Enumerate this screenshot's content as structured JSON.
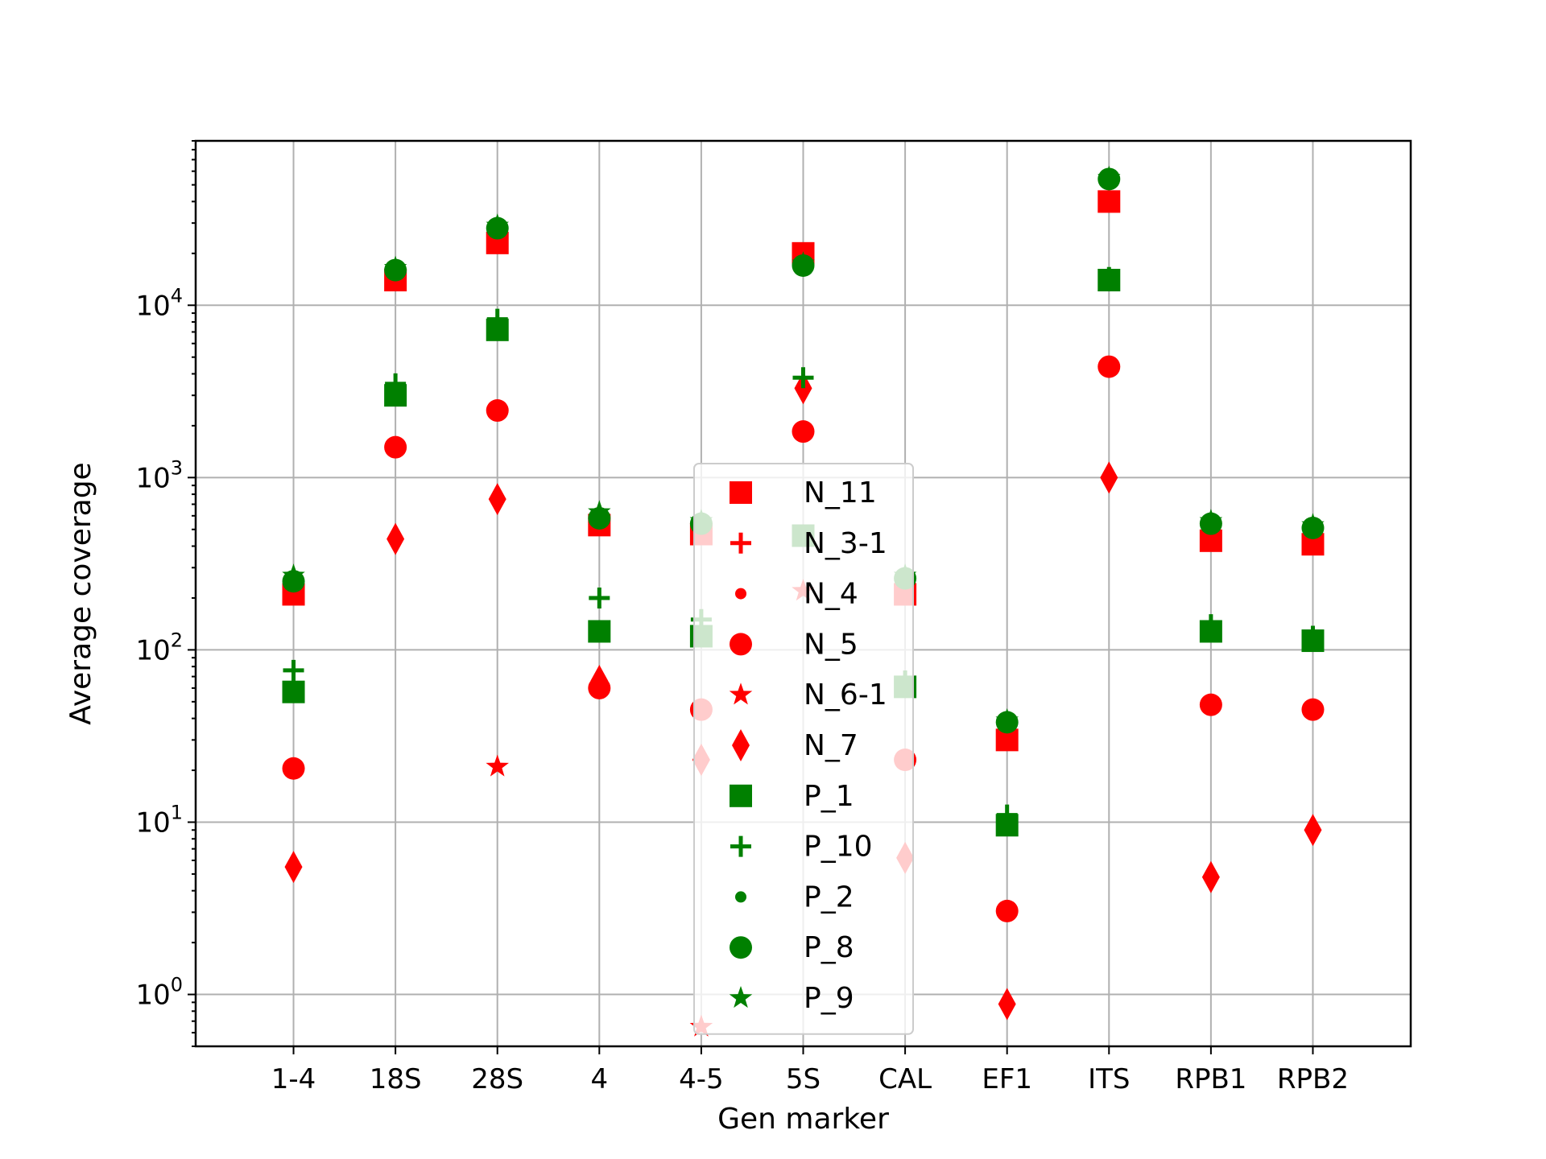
{
  "chart_data": {
    "type": "scatter",
    "title": "",
    "xlabel": "Gen marker",
    "ylabel": "Average coverage",
    "yscale": "log",
    "ylim": [
      0.5,
      90000
    ],
    "grid": true,
    "legend_position": "center",
    "categories": [
      "1-4",
      "18S",
      "28S",
      "4",
      "4-5",
      "5S",
      "CAL",
      "EF1",
      "ITS",
      "RPB1",
      "RPB2"
    ],
    "y_ticks": [
      {
        "value": 1,
        "base": "10",
        "exp": "0"
      },
      {
        "value": 10,
        "base": "10",
        "exp": "1"
      },
      {
        "value": 100,
        "base": "10",
        "exp": "2"
      },
      {
        "value": 1000,
        "base": "10",
        "exp": "3"
      },
      {
        "value": 10000,
        "base": "10",
        "exp": "4"
      }
    ],
    "colors": {
      "N": "#ff0000",
      "P": "#008000"
    },
    "series": [
      {
        "name": "N_11",
        "color": "#ff0000",
        "marker": "square",
        "points": [
          [
            "1-4",
            210
          ],
          [
            "18S",
            14000
          ],
          [
            "28S",
            23000
          ],
          [
            "4",
            530
          ],
          [
            "4-5",
            470
          ],
          [
            "5S",
            20000
          ],
          [
            "CAL",
            210
          ],
          [
            "EF1",
            30
          ],
          [
            "ITS",
            40000
          ],
          [
            "RPB1",
            430
          ],
          [
            "RPB2",
            410
          ]
        ]
      },
      {
        "name": "N_3-1",
        "color": "#ff0000",
        "marker": "plus",
        "points": []
      },
      {
        "name": "N_4",
        "color": "#ff0000",
        "marker": "dot",
        "points": []
      },
      {
        "name": "N_5",
        "color": "#ff0000",
        "marker": "circle",
        "points": [
          [
            "1-4",
            20.5
          ],
          [
            "18S",
            1500
          ],
          [
            "28S",
            2450
          ],
          [
            "4",
            60
          ],
          [
            "4-5",
            45
          ],
          [
            "5S",
            1850
          ],
          [
            "CAL",
            23
          ],
          [
            "EF1",
            3.05
          ],
          [
            "ITS",
            4400
          ],
          [
            "RPB1",
            48
          ],
          [
            "RPB2",
            45
          ]
        ]
      },
      {
        "name": "N_6-1",
        "color": "#ff0000",
        "marker": "star",
        "points": [
          [
            "28S",
            21
          ],
          [
            "4-5",
            0.65
          ],
          [
            "5S",
            220
          ]
        ]
      },
      {
        "name": "N_7",
        "color": "#ff0000",
        "marker": "diamond",
        "points": [
          [
            "1-4",
            5.5
          ],
          [
            "18S",
            440
          ],
          [
            "28S",
            750
          ],
          [
            "4",
            66
          ],
          [
            "4-5",
            23
          ],
          [
            "5S",
            3300
          ],
          [
            "CAL",
            6.2
          ],
          [
            "EF1",
            0.88
          ],
          [
            "ITS",
            1000
          ],
          [
            "RPB1",
            4.8
          ],
          [
            "RPB2",
            9.0
          ]
        ]
      },
      {
        "name": "P_1",
        "color": "#008000",
        "marker": "square",
        "points": [
          [
            "1-4",
            57
          ],
          [
            "18S",
            3000
          ],
          [
            "28S",
            7200
          ],
          [
            "4",
            128
          ],
          [
            "4-5",
            120
          ],
          [
            "5S",
            460
          ],
          [
            "CAL",
            61
          ],
          [
            "EF1",
            9.6
          ],
          [
            "ITS",
            14000
          ],
          [
            "RPB1",
            128
          ],
          [
            "RPB2",
            113
          ]
        ]
      },
      {
        "name": "P_10",
        "color": "#008000",
        "marker": "plus",
        "points": [
          [
            "1-4",
            76
          ],
          [
            "18S",
            3500
          ],
          [
            "28S",
            8300
          ],
          [
            "4",
            200
          ],
          [
            "4-5",
            150
          ],
          [
            "5S",
            3800
          ],
          [
            "CAL",
            66
          ],
          [
            "EF1",
            11
          ],
          [
            "ITS",
            14500
          ],
          [
            "RPB1",
            140
          ],
          [
            "RPB2",
            120
          ]
        ]
      },
      {
        "name": "P_2",
        "color": "#008000",
        "marker": "dot",
        "points": []
      },
      {
        "name": "P_8",
        "color": "#008000",
        "marker": "circle",
        "points": [
          [
            "1-4",
            250
          ],
          [
            "18S",
            16000
          ],
          [
            "28S",
            28000
          ],
          [
            "4",
            580
          ],
          [
            "4-5",
            540
          ],
          [
            "5S",
            17000
          ],
          [
            "CAL",
            260
          ],
          [
            "EF1",
            38
          ],
          [
            "ITS",
            54000
          ],
          [
            "RPB1",
            540
          ],
          [
            "RPB2",
            510
          ]
        ]
      },
      {
        "name": "P_9",
        "color": "#008000",
        "marker": "star",
        "points": [
          [
            "1-4",
            270
          ],
          [
            "18S",
            16500
          ],
          [
            "28S",
            29000
          ],
          [
            "4",
            630
          ],
          [
            "4-5",
            560
          ],
          [
            "5S",
            17500
          ],
          [
            "CAL",
            270
          ],
          [
            "EF1",
            39
          ],
          [
            "ITS",
            55000
          ],
          [
            "RPB1",
            560
          ],
          [
            "RPB2",
            530
          ]
        ]
      }
    ]
  }
}
